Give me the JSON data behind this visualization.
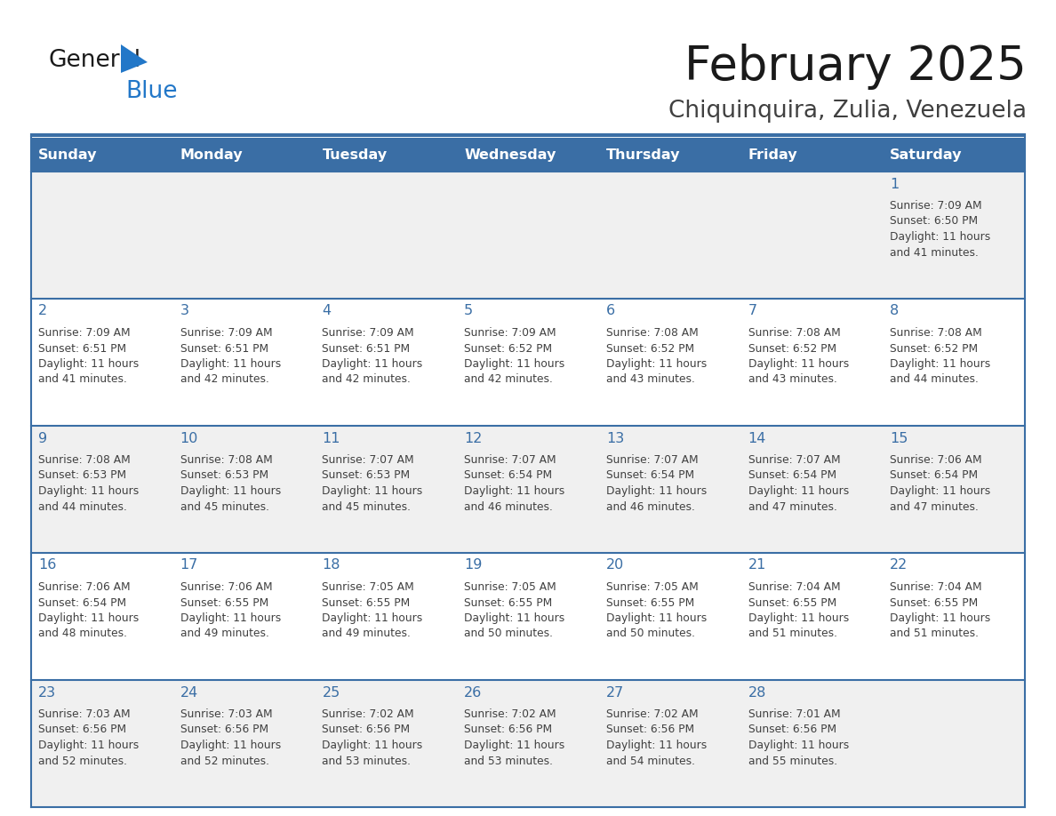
{
  "title": "February 2025",
  "subtitle": "Chiquinquira, Zulia, Venezuela",
  "days_of_week": [
    "Sunday",
    "Monday",
    "Tuesday",
    "Wednesday",
    "Thursday",
    "Friday",
    "Saturday"
  ],
  "header_bg": "#3A6EA5",
  "header_text": "#FFFFFF",
  "cell_bg_row0": "#F0F0F0",
  "cell_bg_row1": "#FFFFFF",
  "cell_bg_row2": "#F0F0F0",
  "cell_bg_row3": "#FFFFFF",
  "cell_bg_row4": "#F0F0F0",
  "separator_color": "#3A6EA5",
  "day_num_color": "#3A6EA5",
  "text_color": "#404040",
  "logo_text_color": "#1a1a1a",
  "logo_blue_color": "#2277C8",
  "title_color": "#1a1a1a",
  "subtitle_color": "#404040",
  "calendar_data": [
    [
      null,
      null,
      null,
      null,
      null,
      null,
      {
        "day": 1,
        "sunrise": "7:09 AM",
        "sunset": "6:50 PM",
        "daylight_line1": "Daylight: 11 hours",
        "daylight_line2": "and 41 minutes."
      }
    ],
    [
      {
        "day": 2,
        "sunrise": "7:09 AM",
        "sunset": "6:51 PM",
        "daylight_line1": "Daylight: 11 hours",
        "daylight_line2": "and 41 minutes."
      },
      {
        "day": 3,
        "sunrise": "7:09 AM",
        "sunset": "6:51 PM",
        "daylight_line1": "Daylight: 11 hours",
        "daylight_line2": "and 42 minutes."
      },
      {
        "day": 4,
        "sunrise": "7:09 AM",
        "sunset": "6:51 PM",
        "daylight_line1": "Daylight: 11 hours",
        "daylight_line2": "and 42 minutes."
      },
      {
        "day": 5,
        "sunrise": "7:09 AM",
        "sunset": "6:52 PM",
        "daylight_line1": "Daylight: 11 hours",
        "daylight_line2": "and 42 minutes."
      },
      {
        "day": 6,
        "sunrise": "7:08 AM",
        "sunset": "6:52 PM",
        "daylight_line1": "Daylight: 11 hours",
        "daylight_line2": "and 43 minutes."
      },
      {
        "day": 7,
        "sunrise": "7:08 AM",
        "sunset": "6:52 PM",
        "daylight_line1": "Daylight: 11 hours",
        "daylight_line2": "and 43 minutes."
      },
      {
        "day": 8,
        "sunrise": "7:08 AM",
        "sunset": "6:52 PM",
        "daylight_line1": "Daylight: 11 hours",
        "daylight_line2": "and 44 minutes."
      }
    ],
    [
      {
        "day": 9,
        "sunrise": "7:08 AM",
        "sunset": "6:53 PM",
        "daylight_line1": "Daylight: 11 hours",
        "daylight_line2": "and 44 minutes."
      },
      {
        "day": 10,
        "sunrise": "7:08 AM",
        "sunset": "6:53 PM",
        "daylight_line1": "Daylight: 11 hours",
        "daylight_line2": "and 45 minutes."
      },
      {
        "day": 11,
        "sunrise": "7:07 AM",
        "sunset": "6:53 PM",
        "daylight_line1": "Daylight: 11 hours",
        "daylight_line2": "and 45 minutes."
      },
      {
        "day": 12,
        "sunrise": "7:07 AM",
        "sunset": "6:54 PM",
        "daylight_line1": "Daylight: 11 hours",
        "daylight_line2": "and 46 minutes."
      },
      {
        "day": 13,
        "sunrise": "7:07 AM",
        "sunset": "6:54 PM",
        "daylight_line1": "Daylight: 11 hours",
        "daylight_line2": "and 46 minutes."
      },
      {
        "day": 14,
        "sunrise": "7:07 AM",
        "sunset": "6:54 PM",
        "daylight_line1": "Daylight: 11 hours",
        "daylight_line2": "and 47 minutes."
      },
      {
        "day": 15,
        "sunrise": "7:06 AM",
        "sunset": "6:54 PM",
        "daylight_line1": "Daylight: 11 hours",
        "daylight_line2": "and 47 minutes."
      }
    ],
    [
      {
        "day": 16,
        "sunrise": "7:06 AM",
        "sunset": "6:54 PM",
        "daylight_line1": "Daylight: 11 hours",
        "daylight_line2": "and 48 minutes."
      },
      {
        "day": 17,
        "sunrise": "7:06 AM",
        "sunset": "6:55 PM",
        "daylight_line1": "Daylight: 11 hours",
        "daylight_line2": "and 49 minutes."
      },
      {
        "day": 18,
        "sunrise": "7:05 AM",
        "sunset": "6:55 PM",
        "daylight_line1": "Daylight: 11 hours",
        "daylight_line2": "and 49 minutes."
      },
      {
        "day": 19,
        "sunrise": "7:05 AM",
        "sunset": "6:55 PM",
        "daylight_line1": "Daylight: 11 hours",
        "daylight_line2": "and 50 minutes."
      },
      {
        "day": 20,
        "sunrise": "7:05 AM",
        "sunset": "6:55 PM",
        "daylight_line1": "Daylight: 11 hours",
        "daylight_line2": "and 50 minutes."
      },
      {
        "day": 21,
        "sunrise": "7:04 AM",
        "sunset": "6:55 PM",
        "daylight_line1": "Daylight: 11 hours",
        "daylight_line2": "and 51 minutes."
      },
      {
        "day": 22,
        "sunrise": "7:04 AM",
        "sunset": "6:55 PM",
        "daylight_line1": "Daylight: 11 hours",
        "daylight_line2": "and 51 minutes."
      }
    ],
    [
      {
        "day": 23,
        "sunrise": "7:03 AM",
        "sunset": "6:56 PM",
        "daylight_line1": "Daylight: 11 hours",
        "daylight_line2": "and 52 minutes."
      },
      {
        "day": 24,
        "sunrise": "7:03 AM",
        "sunset": "6:56 PM",
        "daylight_line1": "Daylight: 11 hours",
        "daylight_line2": "and 52 minutes."
      },
      {
        "day": 25,
        "sunrise": "7:02 AM",
        "sunset": "6:56 PM",
        "daylight_line1": "Daylight: 11 hours",
        "daylight_line2": "and 53 minutes."
      },
      {
        "day": 26,
        "sunrise": "7:02 AM",
        "sunset": "6:56 PM",
        "daylight_line1": "Daylight: 11 hours",
        "daylight_line2": "and 53 minutes."
      },
      {
        "day": 27,
        "sunrise": "7:02 AM",
        "sunset": "6:56 PM",
        "daylight_line1": "Daylight: 11 hours",
        "daylight_line2": "and 54 minutes."
      },
      {
        "day": 28,
        "sunrise": "7:01 AM",
        "sunset": "6:56 PM",
        "daylight_line1": "Daylight: 11 hours",
        "daylight_line2": "and 55 minutes."
      },
      null
    ]
  ]
}
